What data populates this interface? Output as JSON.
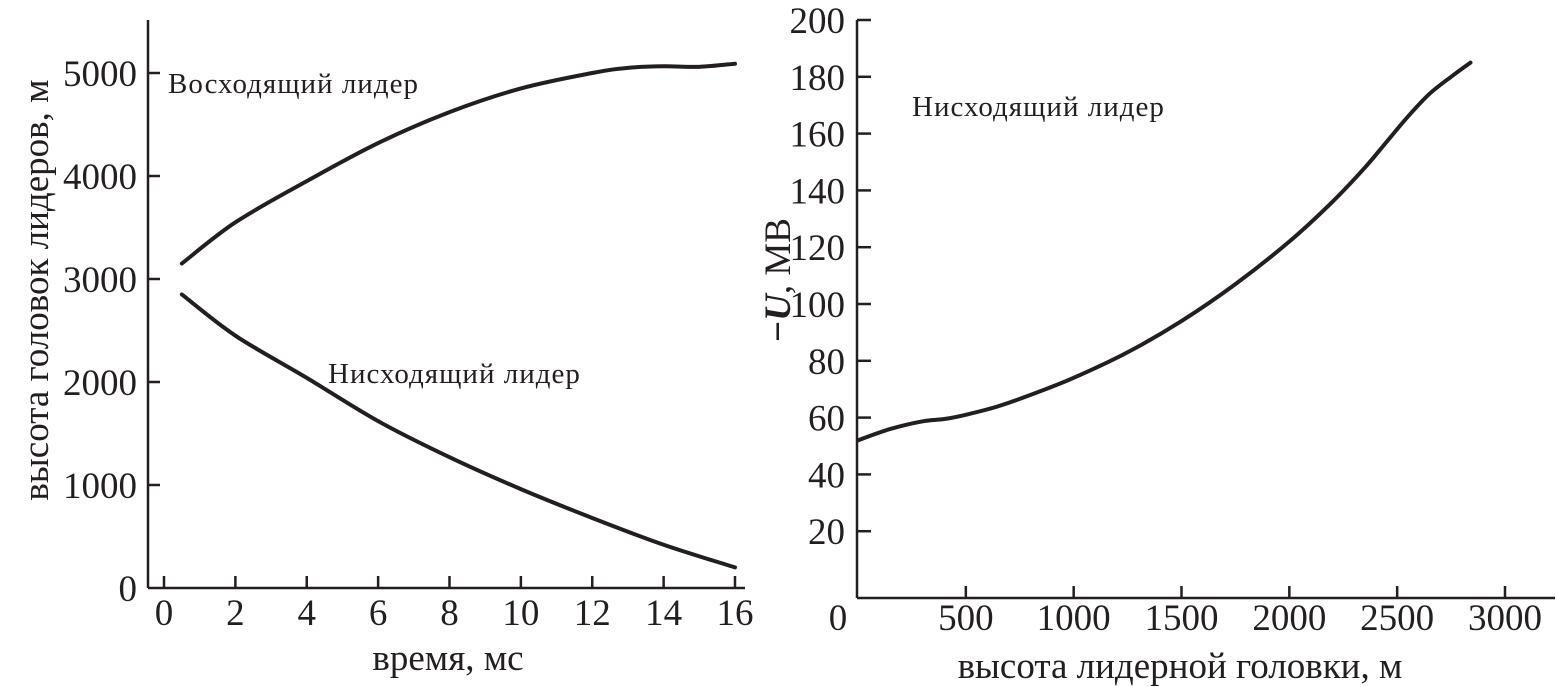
{
  "chart_data": [
    {
      "type": "line",
      "xlabel": "время, мс",
      "ylabel": "высота головок лидеров, м",
      "xlim": [
        -1,
        16.3
      ],
      "ylim": [
        0,
        5500
      ],
      "xticks": [
        0,
        2,
        4,
        6,
        8,
        10,
        12,
        14,
        16
      ],
      "yticks": [
        0,
        1000,
        2000,
        3000,
        4000,
        5000
      ],
      "grid": false,
      "series": [
        {
          "name": "Восходящий лидер",
          "x": [
            0.5,
            2,
            4,
            6,
            8,
            10,
            12,
            13,
            14,
            15,
            16
          ],
          "y": [
            3150,
            3550,
            3950,
            4320,
            4620,
            4850,
            5000,
            5050,
            5065,
            5060,
            5090
          ]
        },
        {
          "name": "Нисходящий лидер",
          "x": [
            0.5,
            2,
            4,
            6,
            8,
            10,
            12,
            14,
            16
          ],
          "y": [
            2850,
            2450,
            2040,
            1620,
            1270,
            960,
            680,
            420,
            200
          ]
        }
      ],
      "annotations": [
        "Восходящий лидер",
        "Нисходящий лидер"
      ]
    },
    {
      "type": "line",
      "xlabel": "высота лидерной головки, м",
      "ylabel_italic": "U",
      "ylabel_prefix": "−",
      "ylabel_suffix": ", МВ",
      "xlim": [
        0,
        3200
      ],
      "ylim": [
        0,
        200
      ],
      "xticks": [
        0,
        500,
        1000,
        1500,
        2000,
        2500,
        3000
      ],
      "yticks": [
        20,
        40,
        60,
        80,
        100,
        120,
        140,
        160,
        180,
        200
      ],
      "grid": false,
      "series": [
        {
          "name": "Нисходящий лидер",
          "x": [
            0,
            150,
            300,
            400,
            500,
            650,
            800,
            1000,
            1250,
            1500,
            1750,
            2000,
            2200,
            2350,
            2450,
            2550,
            2650,
            2750,
            2840
          ],
          "y": [
            52,
            56,
            58.7,
            59.5,
            61,
            64,
            68,
            74,
            83,
            94,
            107,
            122,
            136,
            148,
            157,
            166,
            174,
            180,
            185
          ]
        }
      ],
      "annotations": [
        "Нисходящий лидер"
      ]
    }
  ]
}
